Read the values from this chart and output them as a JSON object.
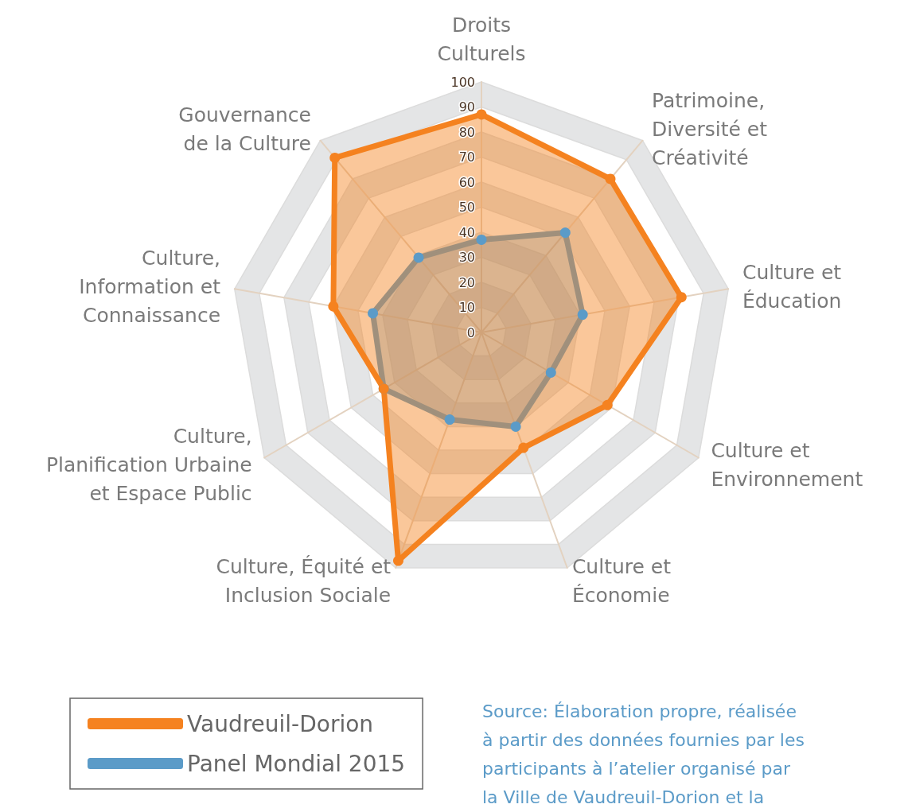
{
  "chart_data": {
    "type": "radar",
    "categories": [
      "Droits\nCulturels",
      "Patrimoine,\nDiversité et\nCréativité",
      "Culture et\nÉducation",
      "Culture et\nEnvironnement",
      "Culture et\nÉconomie",
      "Culture, Équité et\nInclusion Sociale",
      "Culture,\nPlanification Urbaine\net Espace Public",
      "Culture,\nInformation et\nConnaissance",
      "Gouvernance\nde la Culture"
    ],
    "series": [
      {
        "name": "Vaudreuil-Dorion",
        "color": "#f58220",
        "values": [
          87,
          80,
          81,
          58,
          49,
          97,
          45,
          60,
          91
        ]
      },
      {
        "name": "Panel Mondial 2015",
        "color": "#5b9bc8",
        "values": [
          37,
          52,
          41,
          32,
          40,
          37,
          45,
          44,
          39
        ]
      }
    ],
    "ylim": [
      0,
      100
    ],
    "yticks": [
      0,
      10,
      20,
      30,
      40,
      50,
      60,
      70,
      80,
      90,
      100
    ],
    "grid": true,
    "legend": "bottom left",
    "marker": "circle",
    "line_style": "solid",
    "annotations": [
      "Source: Élaboration propre, réalisée à partir des données fournies par les participants à l’atelier organisé par la Ville de Vaudreuil-Dorion et la"
    ]
  }
}
